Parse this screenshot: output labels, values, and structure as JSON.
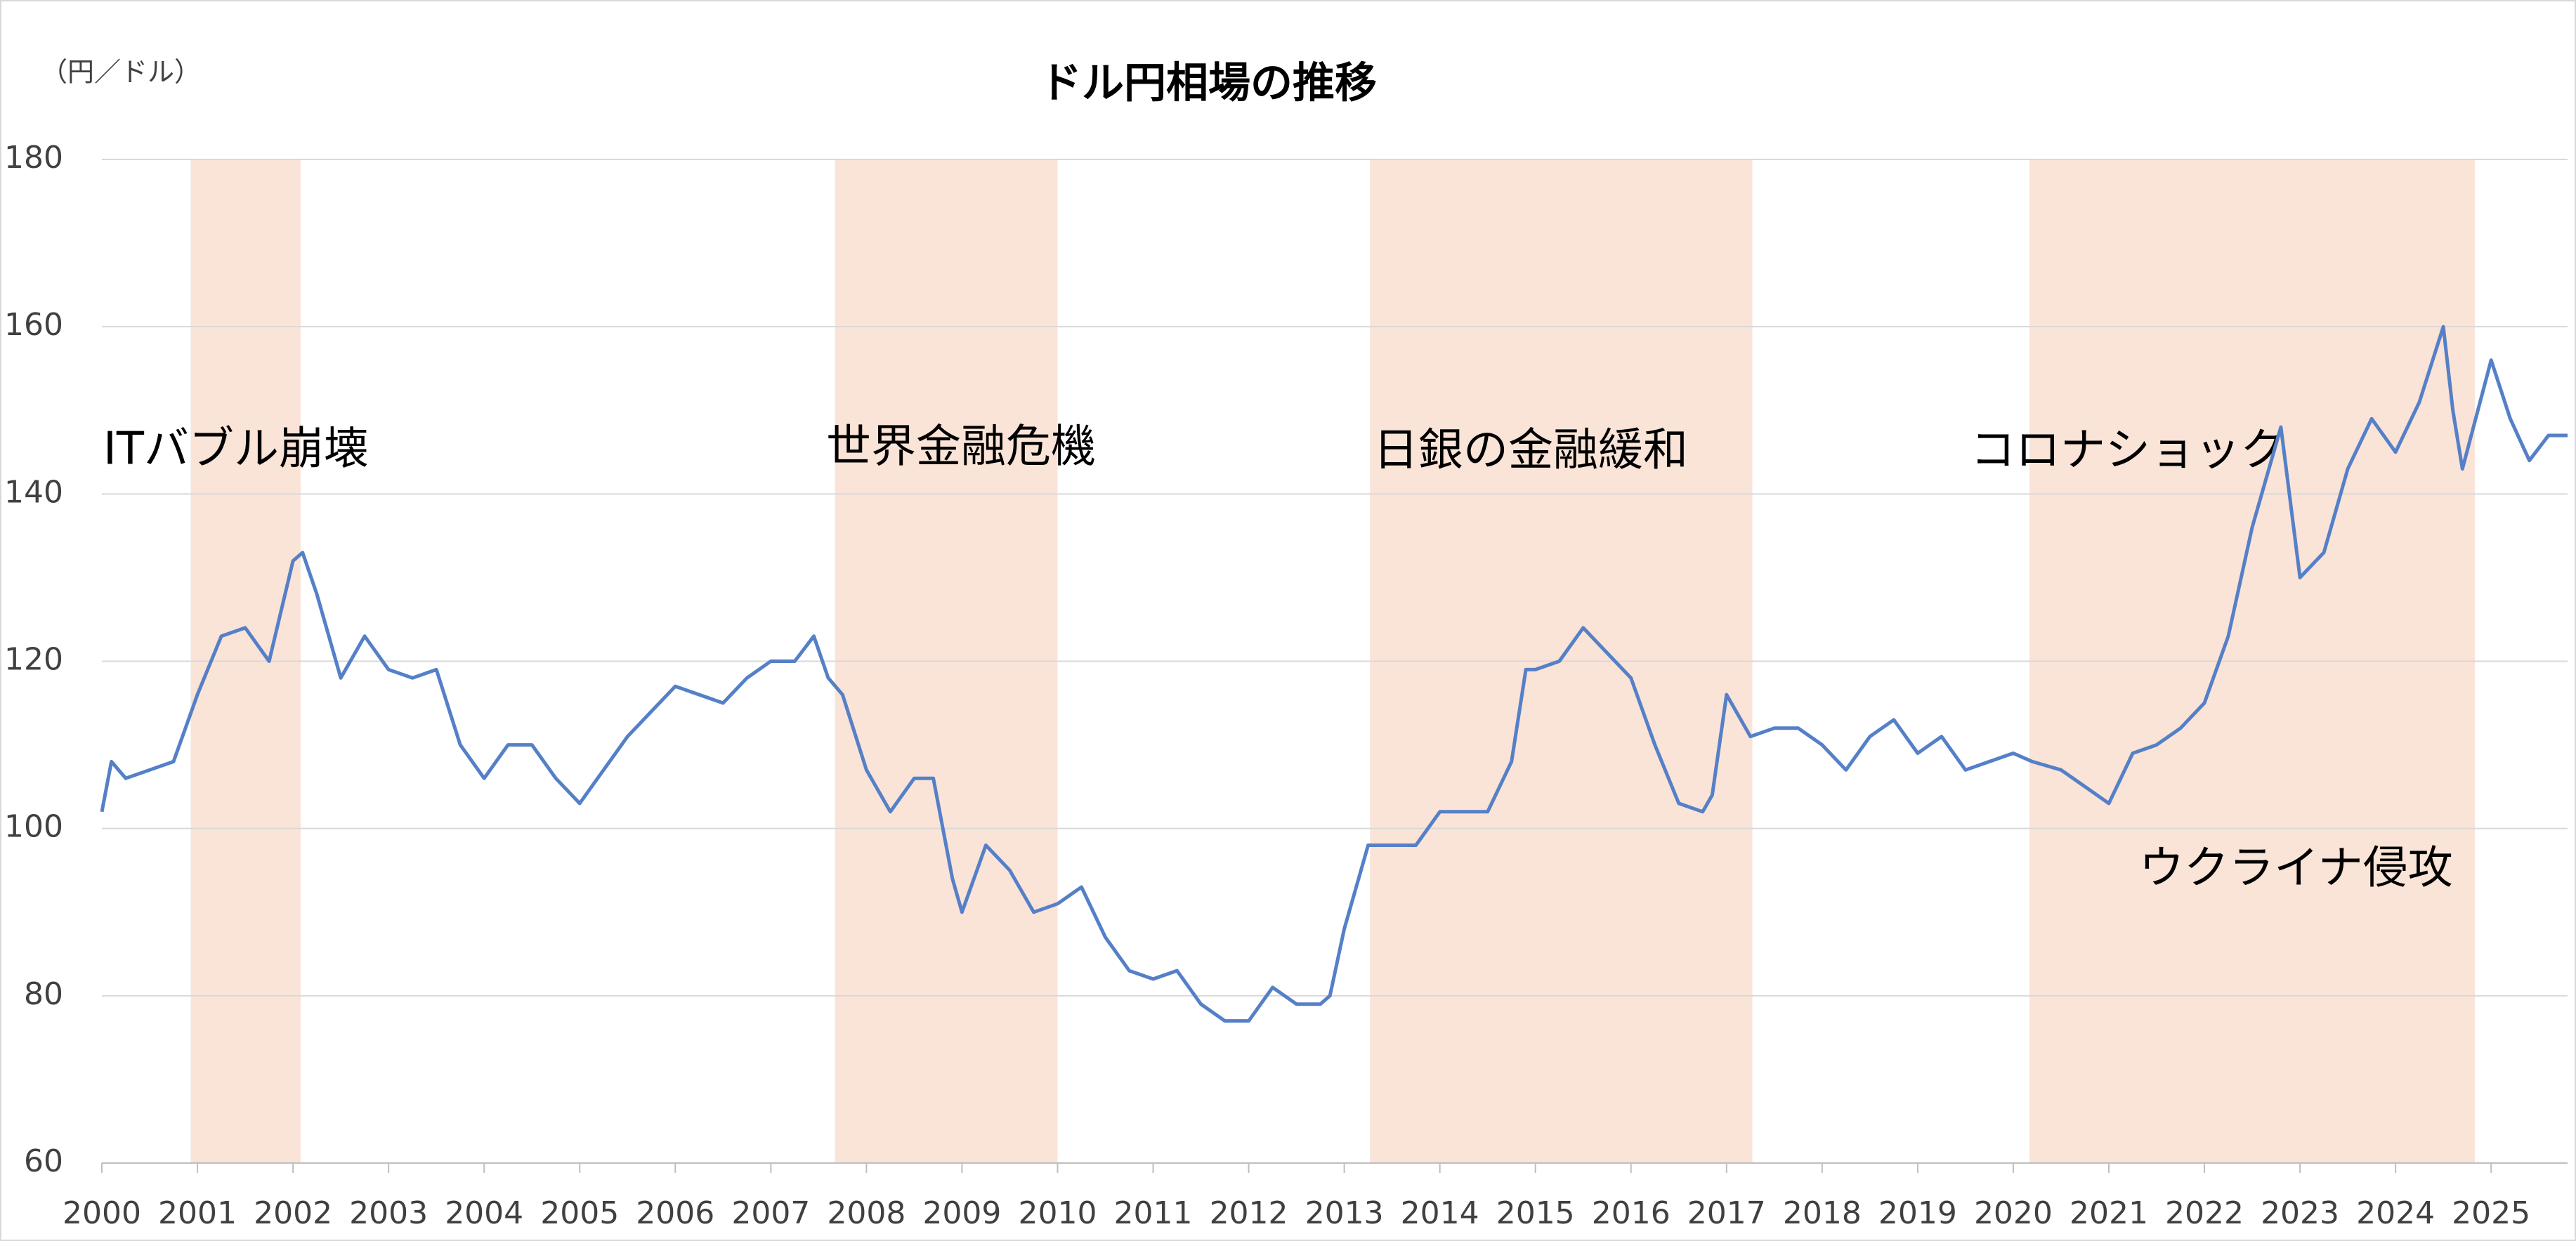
{
  "chart_data": {
    "type": "line",
    "title": "ドル円相場の推移",
    "y_axis_label": "（円／ドル）",
    "color": "#5580c8",
    "x": [
      2000.0,
      2000.1,
      2000.25,
      2000.5,
      2000.75,
      2001.0,
      2001.25,
      2001.5,
      2001.75,
      2002.0,
      2002.1,
      2002.25,
      2002.5,
      2002.75,
      2003.0,
      2003.25,
      2003.5,
      2003.75,
      2004.0,
      2004.25,
      2004.5,
      2004.75,
      2005.0,
      2005.25,
      2005.5,
      2005.75,
      2006.0,
      2006.25,
      2006.5,
      2006.75,
      2007.0,
      2007.25,
      2007.45,
      2007.6,
      2007.75,
      2008.0,
      2008.25,
      2008.5,
      2008.7,
      2008.9,
      2009.0,
      2009.25,
      2009.5,
      2009.75,
      2010.0,
      2010.25,
      2010.5,
      2010.75,
      2011.0,
      2011.25,
      2011.5,
      2011.75,
      2012.0,
      2012.25,
      2012.5,
      2012.75,
      2012.85,
      2013.0,
      2013.25,
      2013.5,
      2013.75,
      2014.0,
      2014.25,
      2014.5,
      2014.75,
      2014.9,
      2015.0,
      2015.25,
      2015.5,
      2015.75,
      2016.0,
      2016.25,
      2016.5,
      2016.75,
      2016.85,
      2017.0,
      2017.25,
      2017.5,
      2017.75,
      2018.0,
      2018.25,
      2018.5,
      2018.75,
      2019.0,
      2019.25,
      2019.5,
      2019.75,
      2020.0,
      2020.2,
      2020.5,
      2020.75,
      2021.0,
      2021.25,
      2021.5,
      2021.75,
      2022.0,
      2022.25,
      2022.5,
      2022.8,
      2023.0,
      2023.25,
      2023.5,
      2023.75,
      2024.0,
      2024.25,
      2024.5,
      2024.6,
      2024.7,
      2025.0,
      2025.2,
      2025.4,
      2025.6,
      2025.8
    ],
    "values": [
      102,
      108,
      106,
      107,
      108,
      116,
      123,
      124,
      120,
      132,
      133,
      128,
      118,
      123,
      119,
      118,
      119,
      110,
      106,
      110,
      110,
      106,
      103,
      107,
      111,
      114,
      117,
      116,
      115,
      118,
      120,
      120,
      123,
      118,
      116,
      107,
      102,
      106,
      106,
      94,
      90,
      98,
      95,
      90,
      91,
      93,
      87,
      83,
      82,
      83,
      79,
      77,
      77,
      81,
      79,
      79,
      80,
      88,
      98,
      98,
      98,
      102,
      102,
      102,
      108,
      119,
      119,
      120,
      124,
      121,
      118,
      110,
      103,
      102,
      104,
      116,
      111,
      112,
      112,
      110,
      107,
      111,
      113,
      109,
      111,
      107,
      108,
      109,
      108,
      107,
      105,
      103,
      109,
      110,
      112,
      115,
      123,
      136,
      148,
      130,
      133,
      143,
      149,
      145,
      151,
      160,
      150,
      143,
      156,
      149,
      144,
      147,
      147
    ],
    "xlim": [
      2000,
      2025.8
    ],
    "xticks": [
      2000,
      2001,
      2002,
      2003,
      2004,
      2005,
      2006,
      2007,
      2008,
      2009,
      2010,
      2011,
      2012,
      2013,
      2014,
      2015,
      2016,
      2017,
      2018,
      2019,
      2020,
      2021,
      2022,
      2023,
      2024,
      2025
    ],
    "ylim": [
      60,
      180
    ],
    "yticks": [
      60,
      80,
      100,
      120,
      140,
      160,
      180
    ],
    "grid": true,
    "shaded_periods": [
      {
        "start": 2000.93,
        "end": 2002.08
      },
      {
        "start": 2007.67,
        "end": 2010.0
      },
      {
        "start": 2013.27,
        "end": 2017.27
      },
      {
        "start": 2020.17,
        "end": 2024.83
      }
    ],
    "shade_color": "#fae4d7",
    "annotations": [
      "ITバブル崩壊",
      "世界金融危機",
      "日銀の金融緩和",
      "コロナショック",
      "ウクライナ侵攻"
    ]
  }
}
